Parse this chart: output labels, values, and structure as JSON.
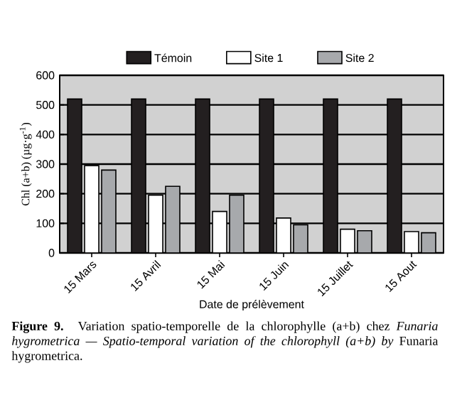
{
  "chart_data": {
    "type": "bar",
    "xlabel": "Date de prélèvement",
    "ylabel": "Chl (a+b) (µg·g$^{-1}$)",
    "categories": [
      "15 Mars",
      "15 Avril",
      "15 Mai",
      "15 Juin",
      "15 Juillet",
      "15 Aout"
    ],
    "series": [
      {
        "name": "Témoin",
        "color": "#231f20",
        "values": [
          520,
          520,
          520,
          520,
          520,
          520
        ]
      },
      {
        "name": "Site 1",
        "color": "#ffffff",
        "values": [
          295,
          195,
          140,
          118,
          80,
          72
        ]
      },
      {
        "name": "Site 2",
        "color": "#a7a9ac",
        "values": [
          280,
          225,
          195,
          95,
          75,
          68
        ]
      }
    ],
    "ylim": [
      0,
      600
    ],
    "yticks": [
      0,
      100,
      200,
      300,
      400,
      500,
      600
    ],
    "grid": "y",
    "legend": "top",
    "annotations": [
      "**Figure 9.** Variation spatio-temporelle de la chlorophylle (a+b) chez *Funaria hygrometrica — Spatio-temporal variation of the chlorophyll (a+b) by* Funaria hygrometrica."
    ]
  }
}
